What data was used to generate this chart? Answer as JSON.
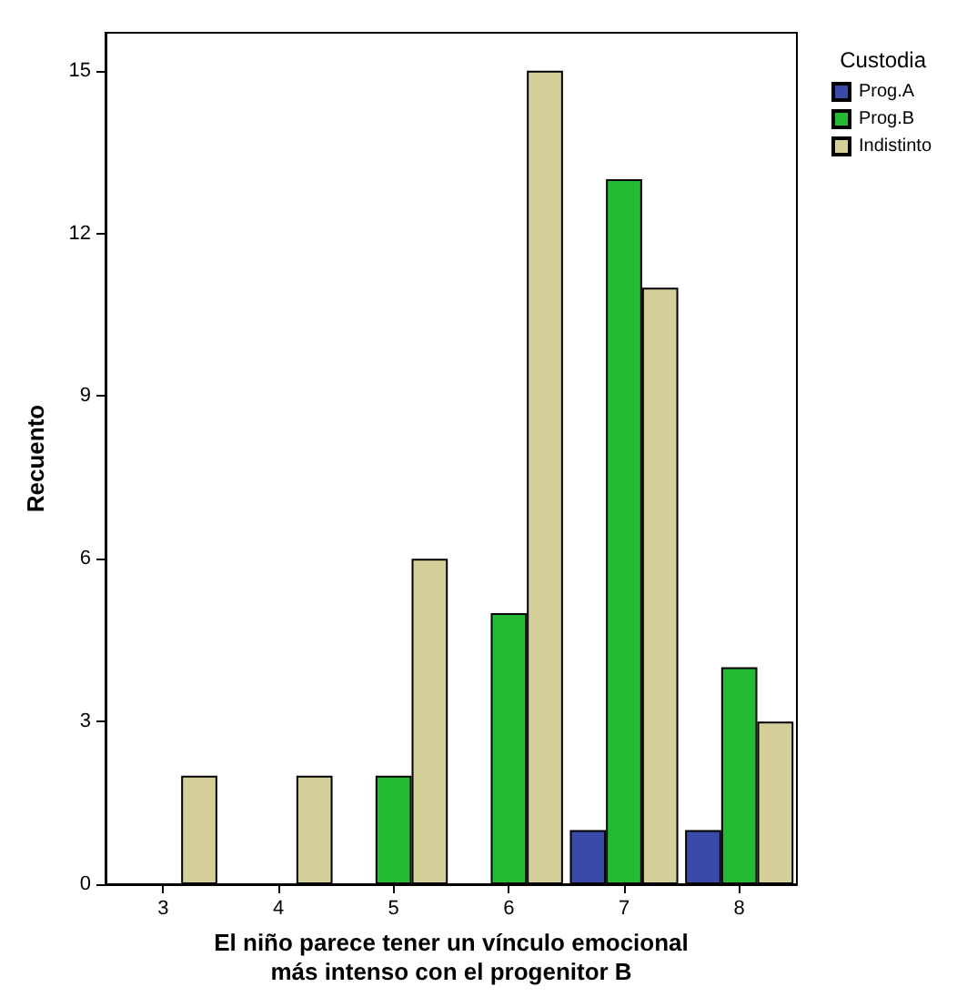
{
  "chart_data": {
    "type": "bar",
    "xlabel": "El niño parece tener un vínculo emocional\nmás intenso con el progenitor B",
    "ylabel": "Recuento",
    "legend_title": "Custodia",
    "categories": [
      "3",
      "4",
      "5",
      "6",
      "7",
      "8"
    ],
    "series": [
      {
        "name": "Prog.A",
        "color": "#3a4aa8",
        "values": [
          0,
          0,
          0,
          0,
          1,
          1
        ]
      },
      {
        "name": "Prog.B",
        "color": "#22bb33",
        "values": [
          0,
          0,
          2,
          5,
          13,
          4
        ]
      },
      {
        "name": "Indistinto",
        "color": "#d5cf9a",
        "values": [
          2,
          2,
          6,
          15,
          11,
          3
        ]
      }
    ],
    "ylim": [
      0,
      15.7
    ],
    "yticks": [
      0,
      3,
      6,
      9,
      12,
      15
    ],
    "grid": false,
    "legend": "top right"
  }
}
